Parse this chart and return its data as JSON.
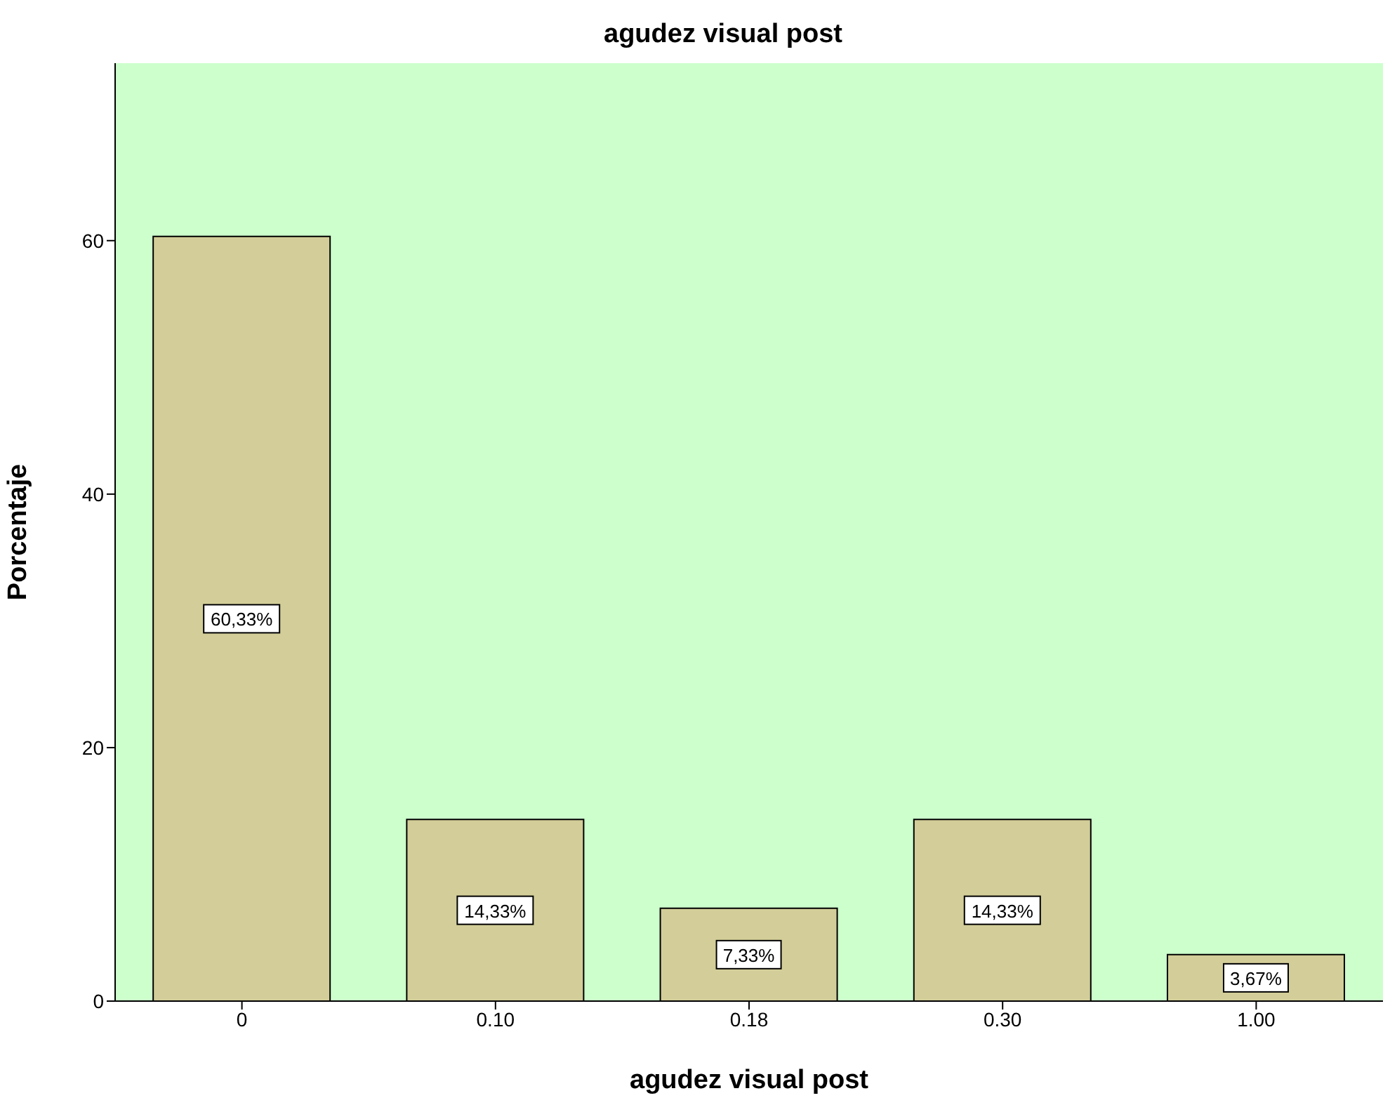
{
  "chart_data": {
    "type": "bar",
    "title": "agudez visual post",
    "xlabel": "agudez visual post",
    "ylabel": "Porcentaje",
    "categories": [
      "0",
      "0.10",
      "0.18",
      "0.30",
      "1.00"
    ],
    "values": [
      60.33,
      14.33,
      7.33,
      14.33,
      3.67
    ],
    "value_labels": [
      "60,33%",
      "14,33%",
      "7,33%",
      "14,33%",
      "3,67%"
    ],
    "color": "#d3ce99",
    "ylim": [
      0,
      74
    ],
    "yticks": [
      0,
      20,
      40,
      60
    ],
    "grid": false
  }
}
